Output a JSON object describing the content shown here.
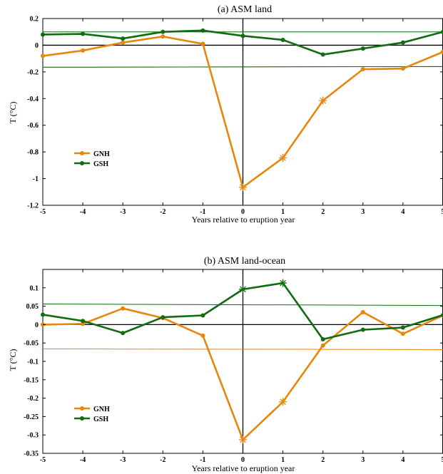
{
  "chart_data": [
    {
      "type": "line",
      "title": "(a) ASM land",
      "xlabel": "Years relative to eruption year",
      "ylabel": "T (°C)",
      "x": [
        -5,
        -4,
        -3,
        -2,
        -1,
        0,
        1,
        2,
        3,
        4,
        5
      ],
      "xlim": [
        -5,
        5
      ],
      "ylim": [
        -1.2,
        0.2
      ],
      "xticks": [
        "-5",
        "-4",
        "-3",
        "-2",
        "-1",
        "0",
        "1",
        "2",
        "3",
        "4",
        "5"
      ],
      "yticks": [
        {
          "value": 0.2,
          "label": "0.2"
        },
        {
          "value": 0,
          "label": "0"
        },
        {
          "value": -0.2,
          "label": "-0.2"
        },
        {
          "value": -0.4,
          "label": "-0.4"
        },
        {
          "value": -0.6,
          "label": "-0.6"
        },
        {
          "value": -0.8,
          "label": "-0.8"
        },
        {
          "value": -1,
          "label": "-1"
        },
        {
          "value": -1.2,
          "label": "-1.2"
        }
      ],
      "series": [
        {
          "name": "GNH",
          "color": "#e8860c",
          "values": [
            -0.08,
            -0.04,
            0.02,
            0.065,
            0.01,
            -1.065,
            -0.845,
            -0.415,
            -0.18,
            -0.175,
            -0.05
          ],
          "significant": [
            5,
            6,
            7
          ]
        },
        {
          "name": "GSH",
          "color": "#116b10",
          "values": [
            0.08,
            0.085,
            0.05,
            0.1,
            0.11,
            0.07,
            0.04,
            -0.07,
            -0.025,
            0.02,
            0.1
          ],
          "significant": []
        }
      ],
      "thresholds": [
        {
          "series": "GNH",
          "color": "#e8860c",
          "values": [
            -0.165,
            -0.16
          ]
        },
        {
          "series": "GSH",
          "color": "#116b10",
          "values": [
            -0.165,
            -0.16
          ]
        },
        {
          "series": "GSH",
          "color": "#116b10",
          "values": [
            0.1,
            0.1
          ]
        }
      ],
      "legend": "left-lower"
    },
    {
      "type": "line",
      "title": "(b) ASM land-ocean",
      "xlabel": "Years relative to eruption year",
      "ylabel": "T (°C)",
      "x": [
        -5,
        -4,
        -3,
        -2,
        -1,
        0,
        1,
        2,
        3,
        4,
        5
      ],
      "xlim": [
        -5,
        5
      ],
      "ylim": [
        -0.35,
        0.15
      ],
      "xticks": [
        "-5",
        "-4",
        "-3",
        "-2",
        "-1",
        "0",
        "1",
        "2",
        "3",
        "4",
        "5"
      ],
      "yticks": [
        {
          "value": 0.1,
          "label": "0.1"
        },
        {
          "value": 0.05,
          "label": "0.05"
        },
        {
          "value": 0,
          "label": "0"
        },
        {
          "value": -0.05,
          "label": "-0.05"
        },
        {
          "value": -0.1,
          "label": "-0.1"
        },
        {
          "value": -0.15,
          "label": "-0.15"
        },
        {
          "value": -0.2,
          "label": "-0.2"
        },
        {
          "value": -0.25,
          "label": "-0.25"
        },
        {
          "value": -0.3,
          "label": "-0.3"
        },
        {
          "value": -0.35,
          "label": "-0.35"
        }
      ],
      "series": [
        {
          "name": "GNH",
          "color": "#e8860c",
          "values": [
            0.0,
            0.002,
            0.044,
            0.018,
            -0.03,
            -0.313,
            -0.21,
            -0.057,
            0.034,
            -0.025,
            0.025
          ],
          "significant": [
            5,
            6
          ]
        },
        {
          "name": "GSH",
          "color": "#116b10",
          "values": [
            0.027,
            0.01,
            -0.023,
            0.02,
            0.025,
            0.096,
            0.113,
            -0.04,
            -0.014,
            -0.008,
            0.026
          ],
          "significant": [
            5,
            6
          ]
        }
      ],
      "thresholds": [
        {
          "series": "GSH",
          "color": "#116b10",
          "values": [
            0.056,
            0.052
          ]
        },
        {
          "series": "GNH",
          "color": "#e8860c",
          "values": [
            -0.066,
            -0.068
          ]
        }
      ],
      "legend": "left-lower"
    }
  ]
}
